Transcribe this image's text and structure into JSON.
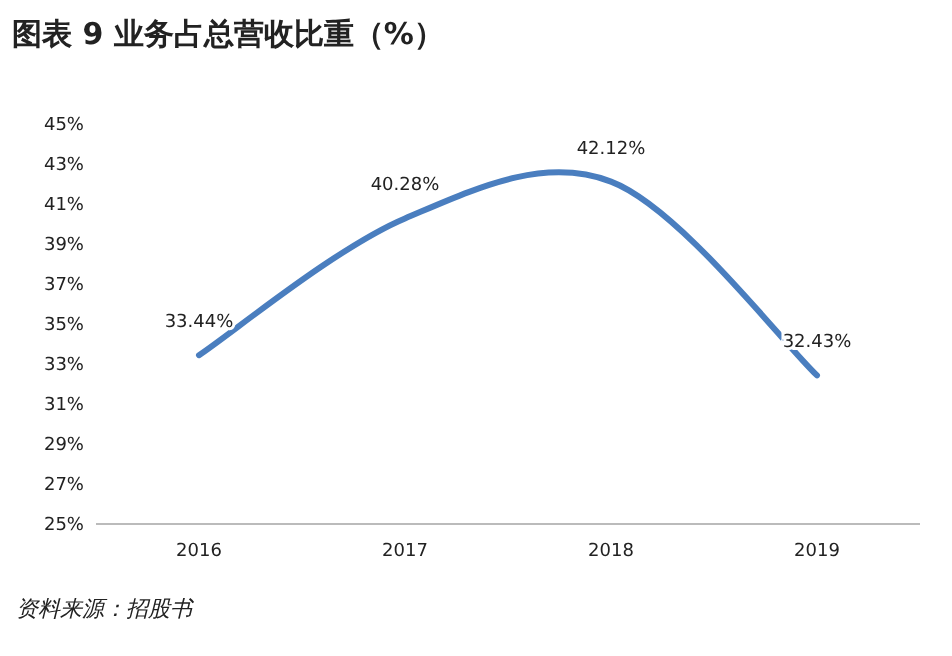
{
  "chart_data": {
    "type": "line",
    "title": "图表 9 业务占总营收比重（%）",
    "categories": [
      "2016",
      "2017",
      "2018",
      "2019"
    ],
    "values": [
      33.44,
      40.28,
      42.12,
      32.43
    ],
    "value_labels": [
      "33.44%",
      "40.28%",
      "42.12%",
      "32.43%"
    ],
    "color": "#4a7ebf",
    "ylim": [
      25,
      45
    ],
    "yticks": [
      {
        "value": 25,
        "label": "25%"
      },
      {
        "value": 27,
        "label": "27%"
      },
      {
        "value": 29,
        "label": "29%"
      },
      {
        "value": 31,
        "label": "31%"
      },
      {
        "value": 33,
        "label": "33%"
      },
      {
        "value": 35,
        "label": "35%"
      },
      {
        "value": 37,
        "label": "37%"
      },
      {
        "value": 39,
        "label": "39%"
      },
      {
        "value": 41,
        "label": "41%"
      },
      {
        "value": 43,
        "label": "43%"
      },
      {
        "value": 45,
        "label": "45%"
      }
    ],
    "annotations": [
      "资料来源：招股书"
    ],
    "marker": "none",
    "line_style": "solid",
    "grid": false
  }
}
